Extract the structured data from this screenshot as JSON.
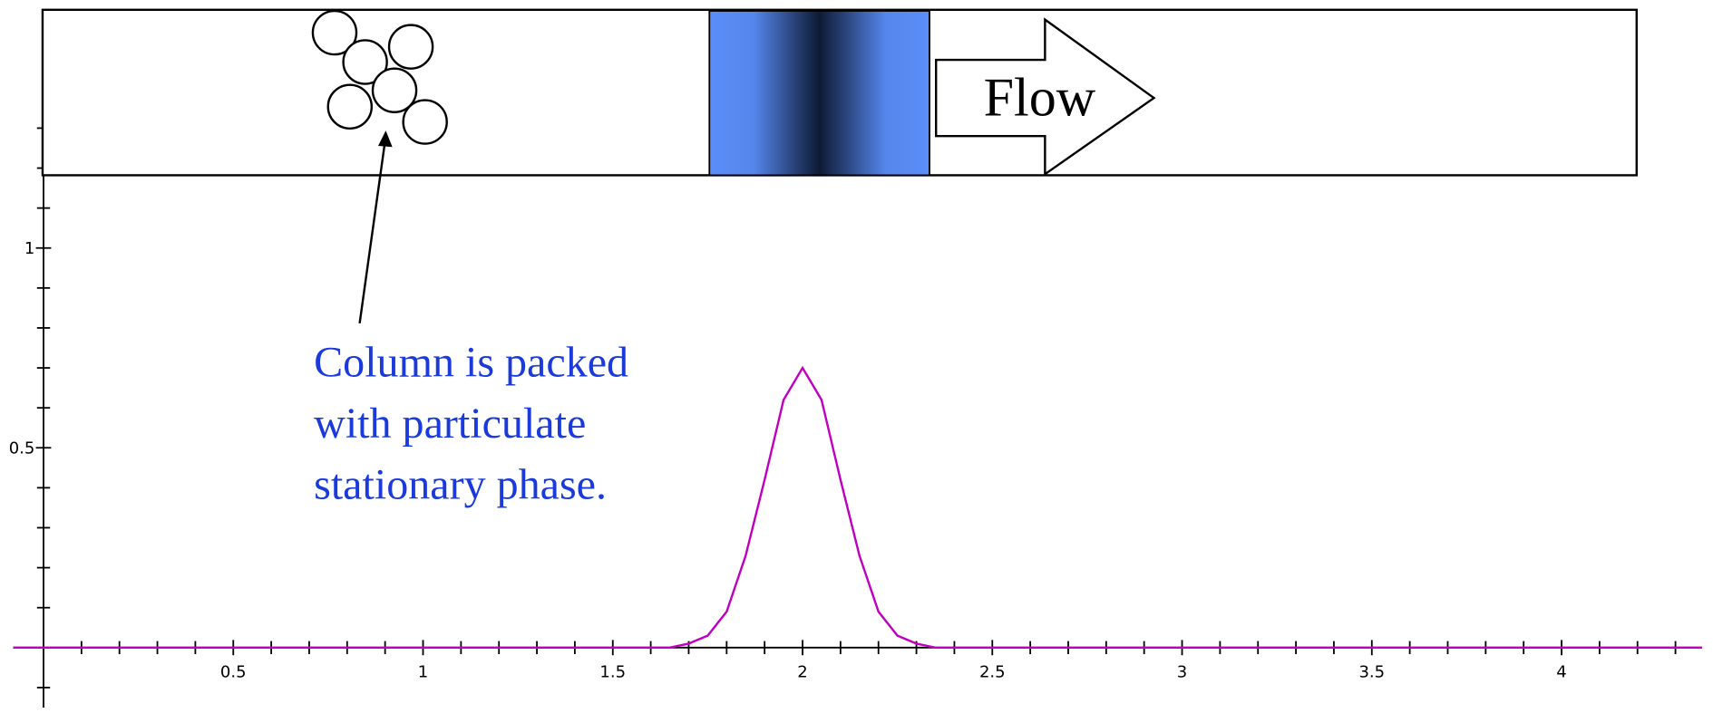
{
  "chart_data": {
    "type": "line",
    "x": [
      -0.08,
      1.6,
      1.65,
      1.7,
      1.75,
      1.8,
      1.85,
      1.9,
      1.95,
      2.0,
      2.05,
      2.1,
      2.15,
      2.2,
      2.25,
      2.3,
      2.35,
      2.4,
      4.37
    ],
    "series": [
      {
        "color": "#c000c0",
        "values": [
          0,
          0,
          0,
          0.01,
          0.03,
          0.09,
          0.23,
          0.42,
          0.62,
          0.7,
          0.62,
          0.42,
          0.23,
          0.09,
          0.03,
          0.01,
          0,
          0,
          0
        ]
      }
    ],
    "xlim": [
      -0.08,
      4.37
    ],
    "ylim": [
      -0.15,
      1.37
    ],
    "xticks": [
      0.5,
      1,
      1.5,
      2,
      2.5,
      3,
      3.5,
      4
    ],
    "yticks": [
      0.5,
      1
    ],
    "xminorticks": [
      0.1,
      0.2,
      0.3,
      0.4,
      0.6,
      0.7,
      0.8,
      0.9,
      1.1,
      1.2,
      1.3,
      1.4,
      1.6,
      1.7,
      1.8,
      1.9,
      2.1,
      2.2,
      2.3,
      2.4,
      2.6,
      2.7,
      2.8,
      2.9,
      3.1,
      3.2,
      3.3,
      3.4,
      3.6,
      3.7,
      3.8,
      3.9,
      4.1,
      4.2,
      4.3
    ],
    "yminorticks": [
      -0.1,
      0.1,
      0.2,
      0.3,
      0.4,
      0.6,
      0.7,
      0.8,
      0.9,
      1.1,
      1.2,
      1.3
    ],
    "flow_label": "Flow",
    "annotation": [
      "Column is packed",
      "with particulate",
      "stationary phase."
    ],
    "annotation_color": "#1a3adb"
  }
}
